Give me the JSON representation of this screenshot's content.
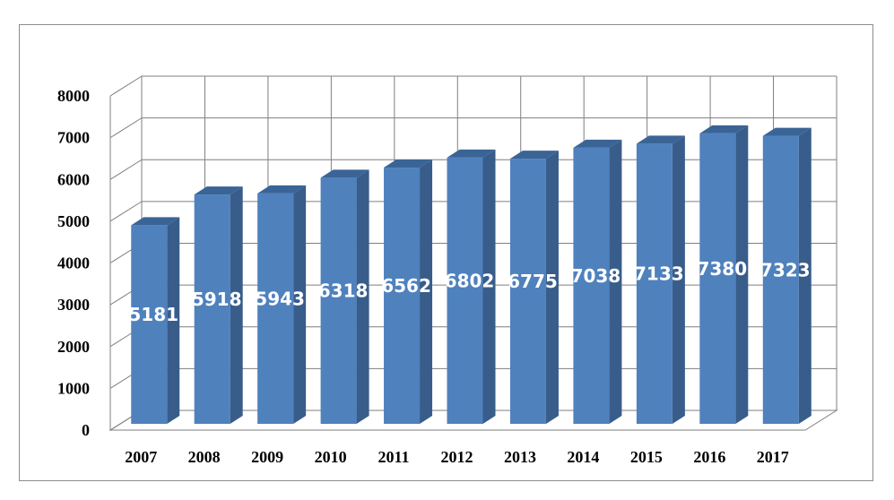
{
  "chart_data": {
    "type": "bar",
    "style": "3d-column",
    "categories": [
      "2007",
      "2008",
      "2009",
      "2010",
      "2011",
      "2012",
      "2013",
      "2014",
      "2015",
      "2016",
      "2017"
    ],
    "values": [
      5181,
      5918,
      5943,
      6318,
      6562,
      6802,
      6775,
      7038,
      7133,
      7380,
      7323
    ],
    "data_labels": [
      "5181",
      "5918",
      "5943",
      "6318",
      "6562",
      "6802",
      "6775",
      "7038",
      "7133",
      "7380",
      "7323"
    ],
    "y_ticks": [
      "0",
      "1000",
      "2000",
      "3000",
      "4000",
      "5000",
      "6000",
      "7000",
      "8000"
    ],
    "ylim": [
      0,
      8000
    ],
    "grid": true,
    "legend": false,
    "colors": {
      "front": "#4f81bd",
      "side": "#385d8a",
      "top": "#3a6496",
      "grid": "#7f7f7f",
      "label": "#ffffff"
    }
  }
}
